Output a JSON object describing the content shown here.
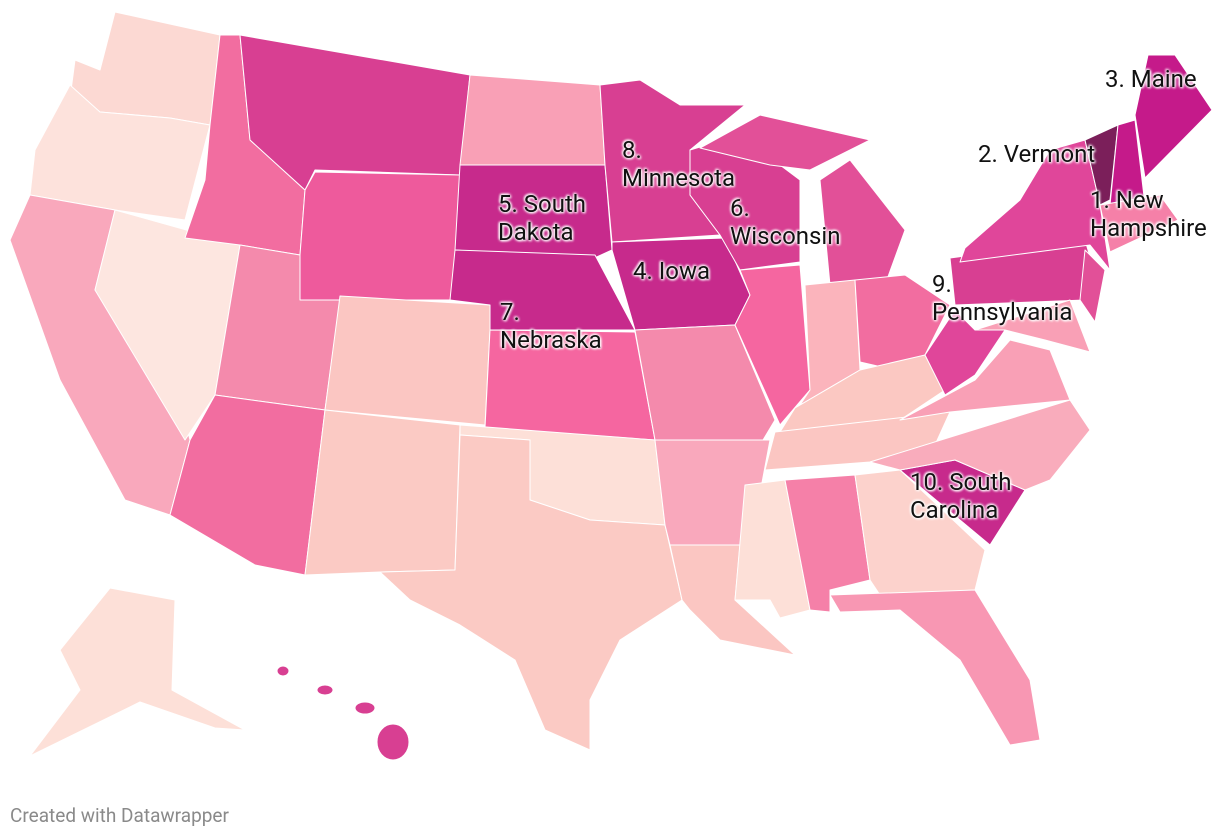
{
  "labels": [
    "3. Maine",
    "2. Vermont",
    "1. New\nHampshire",
    "8.\nMinnesota",
    "5. South\nDakota",
    "6.\nWisconsin",
    "4. Iowa",
    "7.\nNebraska",
    "9.\nPennsylvania",
    "10. South\nCarolina"
  ],
  "footer": "Created with Datawrapper"
}
